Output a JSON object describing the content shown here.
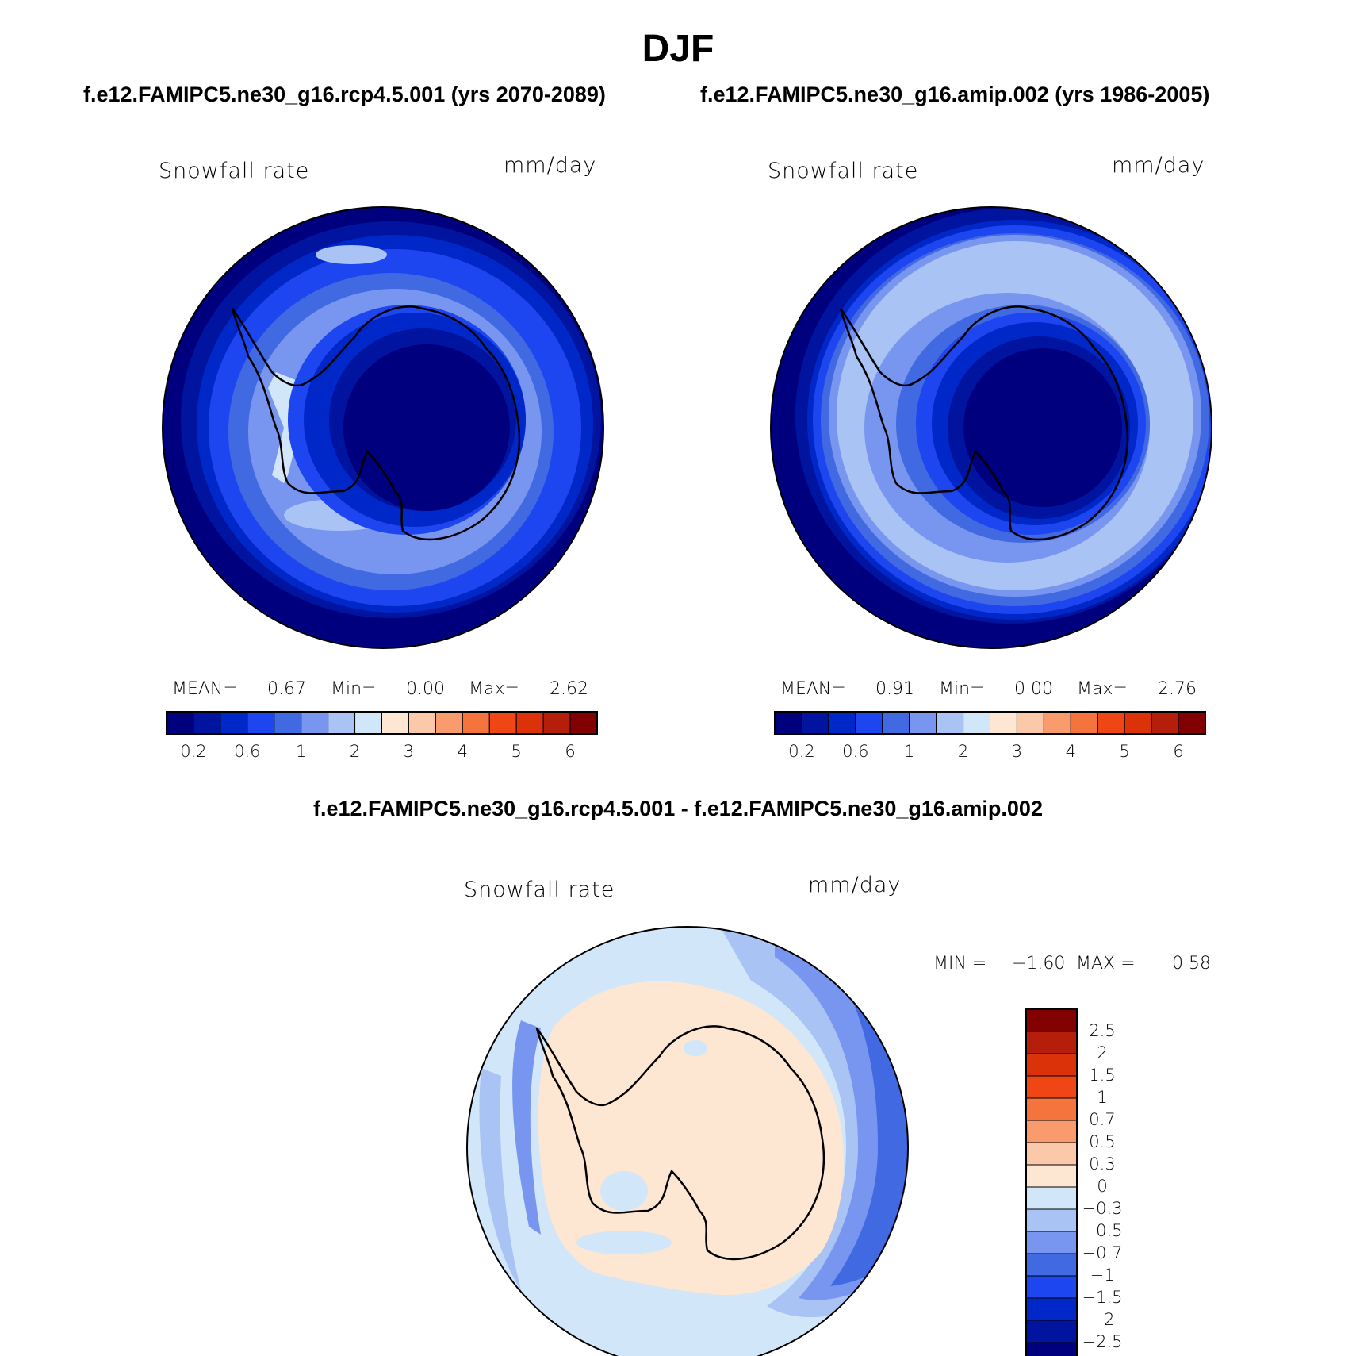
{
  "season": "DJF",
  "panels": [
    {
      "case": "f.e12.FAMIPC5.ne30_g16.rcp4.5.001 (yrs 2070-2089)",
      "variable": "Snowfall rate",
      "units": "mm/day",
      "stats": {
        "mean_label": "MEAN=",
        "mean": "0.67",
        "min_label": "Min=",
        "min": "0.00",
        "max_label": "Max=",
        "max": "2.62"
      }
    },
    {
      "case": "f.e12.FAMIPC5.ne30_g16.amip.002 (yrs 1986-2005)",
      "variable": "Snowfall rate",
      "units": "mm/day",
      "stats": {
        "mean_label": "MEAN=",
        "mean": "0.91",
        "min_label": "Min=",
        "min": "0.00",
        "max_label": "Max=",
        "max": "2.76"
      }
    }
  ],
  "colorbar": {
    "colors": [
      "#00007f",
      "#0014a0",
      "#0028c8",
      "#1e46f0",
      "#4169e1",
      "#7896f0",
      "#aac3f5",
      "#d2e6fa",
      "#fde6d2",
      "#fcc8aa",
      "#fa9b6e",
      "#f5733c",
      "#f04614",
      "#dc320a",
      "#b41e0a",
      "#820000"
    ],
    "tick_labels": [
      "0.2",
      "0.6",
      "1",
      "2",
      "3",
      "4",
      "5",
      "6"
    ]
  },
  "difference": {
    "title": "f.e12.FAMIPC5.ne30_g16.rcp4.5.001 - f.e12.FAMIPC5.ne30_g16.amip.002",
    "variable": "Snowfall rate",
    "units": "mm/day",
    "min_label": "MIN =",
    "min": "−1.60",
    "max_label": "MAX =",
    "max": "0.58",
    "colorbar": {
      "colors_top_to_bottom": [
        "#820000",
        "#b41e0a",
        "#dc320a",
        "#f04614",
        "#f5733c",
        "#fa9b6e",
        "#fcc8aa",
        "#fde6d2",
        "#d2e6fa",
        "#aac3f5",
        "#7896f0",
        "#4169e1",
        "#1e46f0",
        "#0028c8",
        "#0014a0",
        "#00007f"
      ],
      "tick_labels": [
        "2.5",
        "2",
        "1.5",
        "1",
        "0.7",
        "0.5",
        "0.3",
        "0",
        "−0.3",
        "−0.5",
        "−0.7",
        "−1",
        "−1.5",
        "−2",
        "−2.5"
      ]
    }
  }
}
